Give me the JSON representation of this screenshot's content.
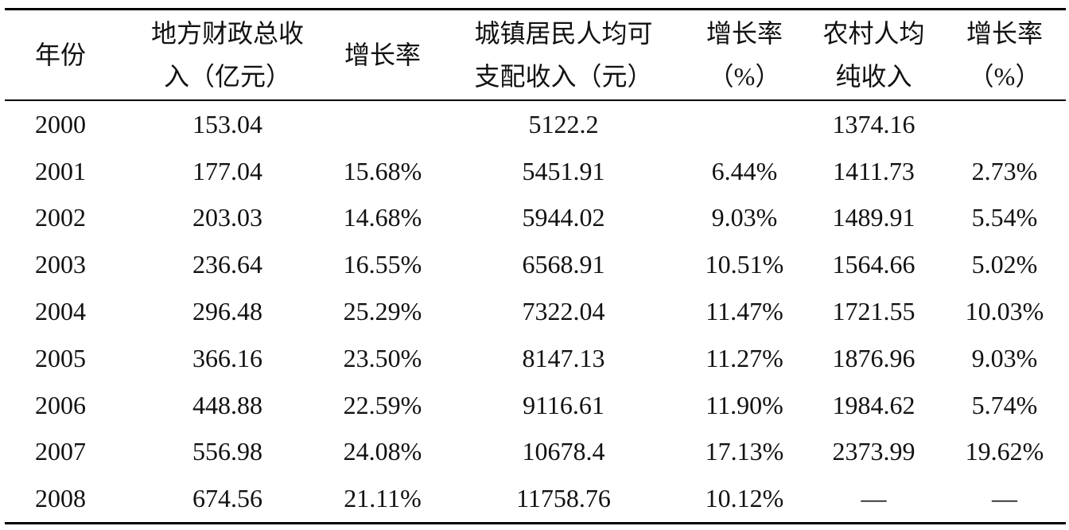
{
  "table": {
    "header": [
      [
        "年份"
      ],
      [
        "地方财政总收",
        "入（亿元）"
      ],
      [
        "增长率"
      ],
      [
        "城镇居民人均可",
        "支配收入（元）"
      ],
      [
        "增长率",
        "（%）"
      ],
      [
        "农村人均",
        "纯收入"
      ],
      [
        "增长率",
        "（%）"
      ]
    ],
    "rows": [
      [
        "2000",
        "153.04",
        null,
        "5122.2",
        null,
        "1374.16",
        null
      ],
      [
        "2001",
        "177.04",
        "15.68%",
        "5451.91",
        "6.44%",
        "1411.73",
        "2.73%"
      ],
      [
        "2002",
        "203.03",
        "14.68%",
        "5944.02",
        "9.03%",
        "1489.91",
        "5.54%"
      ],
      [
        "2003",
        "236.64",
        "16.55%",
        "6568.91",
        "10.51%",
        "1564.66",
        "5.02%"
      ],
      [
        "2004",
        "296.48",
        "25.29%",
        "7322.04",
        "11.47%",
        "1721.55",
        "10.03%"
      ],
      [
        "2005",
        "366.16",
        "23.50%",
        "8147.13",
        "11.27%",
        "1876.96",
        "9.03%"
      ],
      [
        "2006",
        "448.88",
        "22.59%",
        "9116.61",
        "11.90%",
        "1984.62",
        "5.74%"
      ],
      [
        "2007",
        "556.98",
        "24.08%",
        "10678.4",
        "17.13%",
        "2373.99",
        "19.62%"
      ],
      [
        "2008",
        "674.56",
        "21.11%",
        "11758.76",
        "10.12%",
        "—",
        "—"
      ]
    ]
  }
}
